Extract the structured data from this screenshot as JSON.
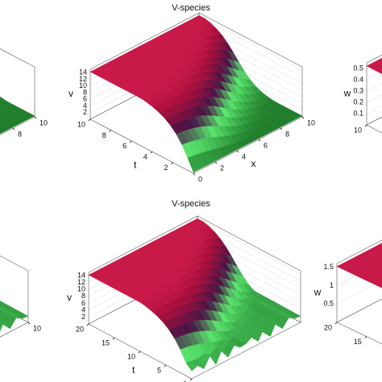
{
  "chart_data": [
    {
      "type": "surface",
      "xlim": [
        0,
        10
      ],
      "xticks": [
        8,
        10
      ],
      "tlim": [
        0,
        10
      ],
      "zlim": [
        0,
        15
      ]
    },
    {
      "type": "surface",
      "title": "V-species",
      "zlabel": "v",
      "tlabel": "t",
      "xlabel": "x",
      "xlim": [
        0,
        10
      ],
      "xticks": [
        0,
        2,
        4,
        6,
        8,
        10
      ],
      "tlim": [
        0,
        10
      ],
      "tticks": [
        2,
        4,
        6,
        8,
        10
      ],
      "zlim": [
        0,
        15
      ],
      "zticks": [
        2,
        4,
        6,
        8,
        10,
        12,
        14
      ]
    },
    {
      "type": "surface",
      "zlabel": "w",
      "xlim": [
        0,
        10
      ],
      "tlim": [
        0,
        10
      ],
      "tticks": [
        10
      ],
      "zlim": [
        0,
        0.55
      ],
      "zticks": [
        0.1,
        0.2,
        0.3,
        0.4,
        0.5
      ]
    },
    {
      "type": "surface",
      "xlim": [
        0,
        10
      ],
      "xticks": [
        10
      ],
      "tlim": [
        0,
        20
      ],
      "zlim": [
        0,
        15
      ]
    },
    {
      "type": "surface",
      "title": "V-species",
      "zlabel": "v",
      "tlabel": "t",
      "xlim": [
        0,
        10
      ],
      "tlim": [
        0,
        20
      ],
      "tticks": [
        0,
        5,
        10,
        15,
        20
      ],
      "zlim": [
        0,
        15
      ],
      "zticks": [
        2,
        4,
        6,
        8,
        10,
        12,
        14
      ]
    },
    {
      "type": "surface",
      "zlabel": "w",
      "xlim": [
        0,
        10
      ],
      "tlim": [
        0,
        20
      ],
      "tticks": [
        15,
        20
      ],
      "zlim": [
        0,
        1.6
      ],
      "zticks": [
        0.5,
        1,
        1.5
      ]
    }
  ]
}
